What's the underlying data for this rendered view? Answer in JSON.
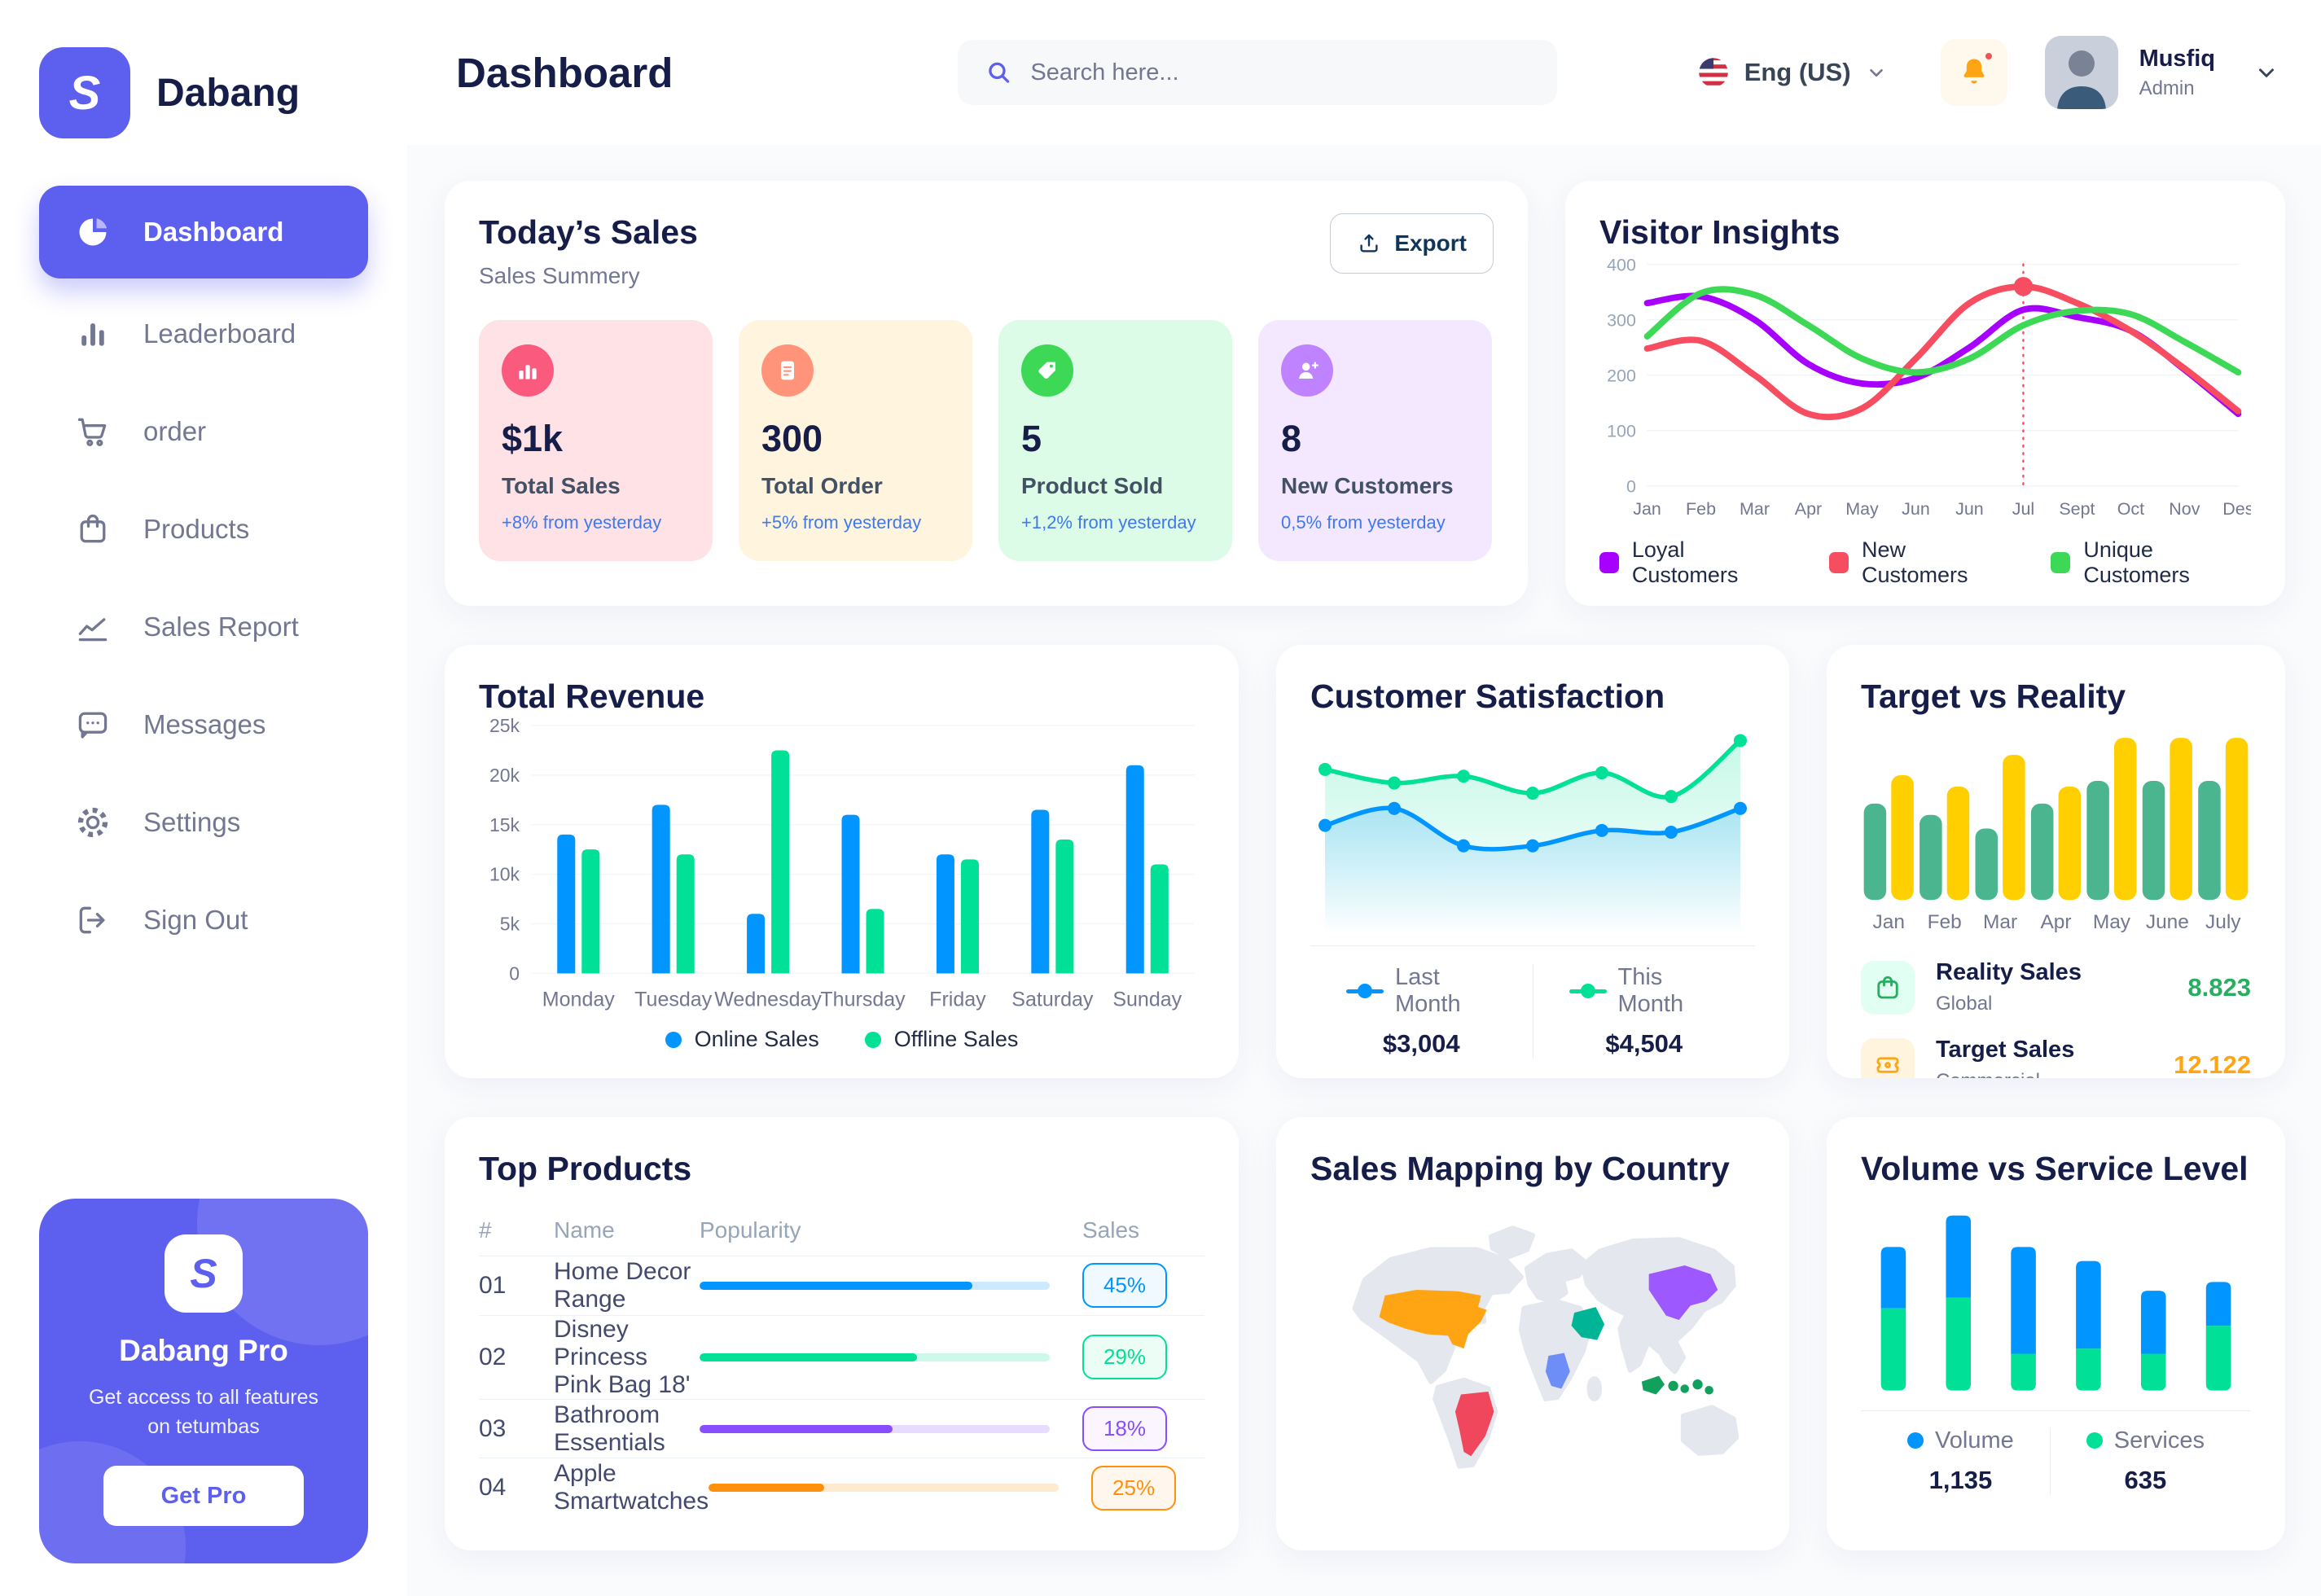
{
  "colors": {
    "primary": "#5D5FEF",
    "navy": "#151D48",
    "gray": "#737791",
    "light_gray": "#96A5B8",
    "delta_blue": "#4079ED",
    "grid": "#F2F3F7"
  },
  "sidebar": {
    "brand": "Dabang",
    "items": [
      {
        "label": "Dashboard",
        "icon": "pie-chart-icon",
        "active": true
      },
      {
        "label": "Leaderboard",
        "icon": "bar-chart-icon"
      },
      {
        "label": "order",
        "icon": "cart-icon"
      },
      {
        "label": "Products",
        "icon": "bag-icon"
      },
      {
        "label": "Sales Report",
        "icon": "line-chart-icon"
      },
      {
        "label": "Messages",
        "icon": "message-icon"
      },
      {
        "label": "Settings",
        "icon": "gear-icon"
      },
      {
        "label": "Sign Out",
        "icon": "sign-out-icon"
      }
    ],
    "pro_card": {
      "title": "Dabang Pro",
      "subtitle": "Get access to all features on tetumbas",
      "button": "Get Pro"
    }
  },
  "header": {
    "title": "Dashboard",
    "search_placeholder": "Search here...",
    "language": "Eng (US)",
    "user": {
      "name": "Musfiq",
      "role": "Admin"
    }
  },
  "todays_sales": {
    "title": "Today’s Sales",
    "subtitle": "Sales Summery",
    "export_label": "Export",
    "stats": [
      {
        "value": "$1k",
        "label": "Total Sales",
        "delta": "+8% from yesterday",
        "card_bg": "#FFE2E5",
        "icon_bg": "#FA5A7D",
        "icon": "chart-column-icon"
      },
      {
        "value": "300",
        "label": "Total Order",
        "delta": "+5% from yesterday",
        "card_bg": "#FFF4DE",
        "icon_bg": "#FF947A",
        "icon": "receipt-icon"
      },
      {
        "value": "5",
        "label": "Product Sold",
        "delta": "+1,2% from yesterday",
        "card_bg": "#DCFCE7",
        "icon_bg": "#3CD856",
        "icon": "tag-icon"
      },
      {
        "value": "8",
        "label": "New Customers",
        "delta": "0,5% from yesterday",
        "card_bg": "#F3E8FF",
        "icon_bg": "#BF83FF",
        "icon": "user-plus-icon"
      }
    ]
  },
  "chart_data": [
    {
      "id": "visitor_insights",
      "type": "line",
      "title": "Visitor Insights",
      "categories": [
        "Jan",
        "Feb",
        "Mar",
        "Apr",
        "May",
        "Jun",
        "Jun",
        "Jul",
        "Sept",
        "Oct",
        "Nov",
        "Des"
      ],
      "yticks": [
        0,
        100,
        200,
        300,
        400
      ],
      "ylim": [
        0,
        400
      ],
      "grid": true,
      "legend_position": "bottom",
      "series": [
        {
          "name": "Loyal Customers",
          "color": "#A700FF",
          "values": [
            330,
            342,
            300,
            220,
            185,
            195,
            250,
            318,
            305,
            280,
            210,
            130
          ]
        },
        {
          "name": "New Customers",
          "color": "#F64E60",
          "values": [
            248,
            262,
            200,
            130,
            140,
            230,
            330,
            360,
            330,
            280,
            212,
            135
          ]
        },
        {
          "name": "Unique Customers",
          "color": "#3CD856",
          "values": [
            270,
            348,
            345,
            290,
            230,
            205,
            230,
            290,
            316,
            310,
            260,
            205
          ]
        }
      ],
      "annotation": {
        "category_index": 7,
        "series": "New Customers",
        "style": "dashed-vertical-line-with-dot"
      }
    },
    {
      "id": "total_revenue",
      "type": "bar",
      "title": "Total Revenue",
      "categories": [
        "Monday",
        "Tuesday",
        "Wednesday",
        "Thursday",
        "Friday",
        "Saturday",
        "Sunday"
      ],
      "ylim": [
        0,
        25000
      ],
      "ytick_labels": [
        "0",
        "5k",
        "10k",
        "15k",
        "20k",
        "25k"
      ],
      "grid": true,
      "legend_position": "bottom",
      "series": [
        {
          "name": "Online Sales",
          "color": "#0095FF",
          "values": [
            14000,
            17000,
            6000,
            16000,
            12000,
            16500,
            21000
          ]
        },
        {
          "name": "Offline Sales",
          "color": "#00E096",
          "values": [
            12500,
            12000,
            22500,
            6500,
            11500,
            13500,
            11000
          ]
        }
      ]
    },
    {
      "id": "customer_satisfaction",
      "type": "area",
      "title": "Customer Satisfaction",
      "ylim": [
        0,
        100
      ],
      "grid": false,
      "legend_position": "bottom",
      "series": [
        {
          "name": "Last Month",
          "color": "#0095FF",
          "total": "$3,004",
          "values": [
            45,
            55,
            33,
            33,
            42,
            41,
            55
          ]
        },
        {
          "name": "This Month",
          "color": "#00E096",
          "total": "$4,504",
          "values": [
            78,
            70,
            74,
            64,
            76,
            62,
            95
          ]
        }
      ]
    },
    {
      "id": "target_vs_reality",
      "type": "bar",
      "title": "Target vs Reality",
      "categories": [
        "Jan",
        "Feb",
        "Mar",
        "Apr",
        "May",
        "June",
        "July"
      ],
      "ylim": [
        0,
        15
      ],
      "grid": false,
      "legend_position": "bottom",
      "series": [
        {
          "name": "Reality Sales",
          "tag": "Global",
          "color": "#4AB58E",
          "value_label": "8.823",
          "value_color": "#27AE60",
          "icon_bg": "#E2FFF3",
          "values": [
            8.5,
            7.5,
            6.3,
            8.5,
            10.5,
            10.5,
            10.5
          ]
        },
        {
          "name": "Target Sales",
          "tag": "Commercial",
          "color": "#FFCF00",
          "value_label": "12.122",
          "value_color": "#FFA412",
          "icon_bg": "#FFF4DE",
          "values": [
            11,
            10,
            12.8,
            10,
            14.3,
            14.3,
            14.3
          ]
        }
      ]
    },
    {
      "id": "volume_vs_service",
      "type": "stacked-bar",
      "title": "Volume vs Service Level",
      "ylim": [
        0,
        110
      ],
      "grid": false,
      "legend_position": "bottom",
      "series": [
        {
          "name": "Volume",
          "color": "#0095FF",
          "total": "1,135",
          "values": [
            35,
            47,
            61,
            50,
            36,
            25
          ]
        },
        {
          "name": "Services",
          "color": "#00E096",
          "total": "635",
          "values": [
            47,
            53,
            21,
            24,
            21,
            37
          ]
        }
      ]
    }
  ],
  "top_products": {
    "title": "Top Products",
    "headers": [
      "#",
      "Name",
      "Popularity",
      "Sales"
    ],
    "rows": [
      {
        "num": "01",
        "name": "Home Decor Range",
        "popularity": 78,
        "sales": "45%",
        "color": "#0095FF",
        "badge_bg": "#F0F9FF"
      },
      {
        "num": "02",
        "name": "Disney Princess Pink Bag 18'",
        "popularity": 62,
        "sales": "29%",
        "color": "#00E096",
        "badge_bg": "#ECFDF5"
      },
      {
        "num": "03",
        "name": "Bathroom Essentials",
        "popularity": 55,
        "sales": "18%",
        "color": "#884DFF",
        "badge_bg": "#FAF5FF"
      },
      {
        "num": "04",
        "name": "Apple Smartwatches",
        "popularity": 33,
        "sales": "25%",
        "color": "#FF8F0D",
        "badge_bg": "#FFF7ED"
      }
    ]
  },
  "sales_mapping": {
    "title": "Sales Mapping by Country",
    "countries": [
      {
        "name": "United States",
        "color": "#FFA412"
      },
      {
        "name": "Brazil",
        "color": "#F0475C"
      },
      {
        "name": "Saudi Arabia",
        "color": "#00B596"
      },
      {
        "name": "DR Congo",
        "color": "#6D8EF7"
      },
      {
        "name": "China",
        "color": "#9E58FF"
      },
      {
        "name": "Indonesia",
        "color": "#12A15D"
      }
    ]
  }
}
